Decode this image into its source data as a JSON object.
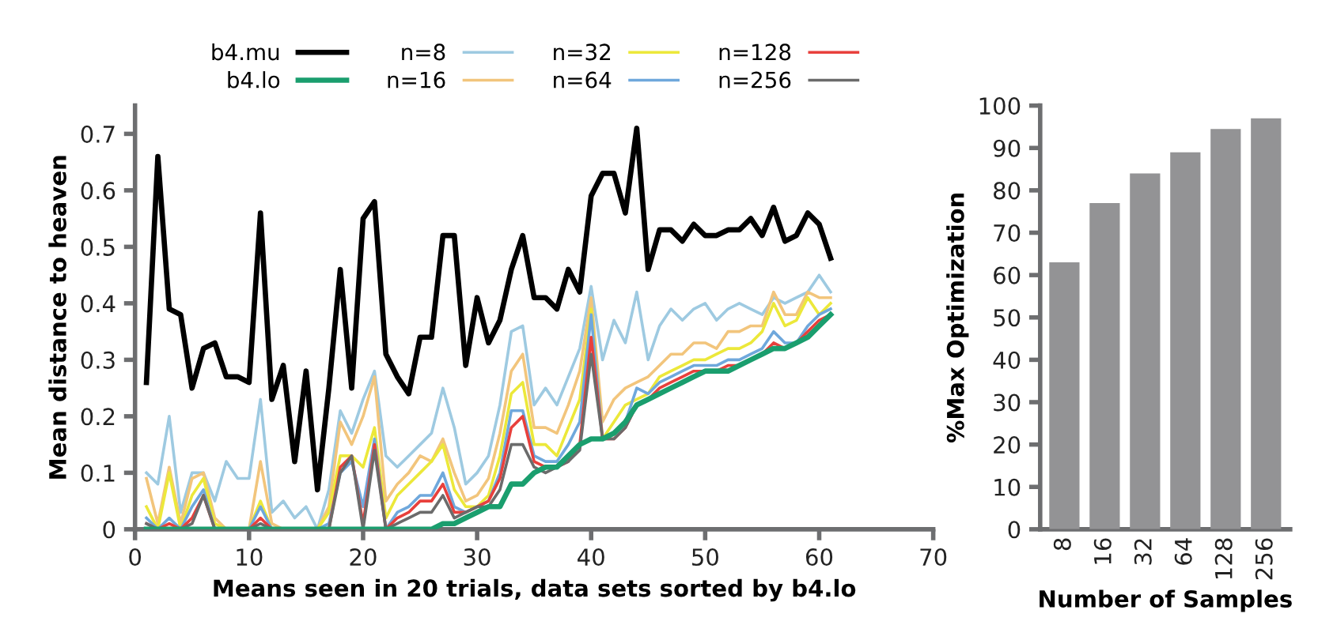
{
  "chart_data": [
    {
      "type": "line",
      "xlabel": "Means seen in 20 trials, data sets sorted by b4.lo",
      "ylabel": "Mean distance to heaven",
      "x": [
        1,
        2,
        3,
        4,
        5,
        6,
        7,
        8,
        9,
        10,
        11,
        12,
        13,
        14,
        15,
        16,
        17,
        18,
        19,
        20,
        21,
        22,
        23,
        24,
        25,
        26,
        27,
        28,
        29,
        30,
        31,
        32,
        33,
        34,
        35,
        36,
        37,
        38,
        39,
        40,
        41,
        42,
        43,
        44,
        45,
        46,
        47,
        48,
        49,
        50,
        51,
        52,
        53,
        54,
        55,
        56,
        57,
        58,
        59,
        60,
        61
      ],
      "xlim": [
        0,
        70
      ],
      "xticks": [
        0,
        10,
        20,
        30,
        40,
        50,
        60,
        70
      ],
      "ylim": [
        0,
        0.75
      ],
      "yticks": [
        0,
        0.1,
        0.2,
        0.3,
        0.4,
        0.5,
        0.6,
        0.7
      ],
      "grid": false,
      "legend": "top",
      "marker": "none",
      "line_style": "solid",
      "series": [
        {
          "name": "b4.mu",
          "color": "#000000",
          "values": [
            0.26,
            0.66,
            0.39,
            0.38,
            0.25,
            0.32,
            0.33,
            0.27,
            0.27,
            0.26,
            0.56,
            0.23,
            0.29,
            0.12,
            0.28,
            0.07,
            0.25,
            0.46,
            0.25,
            0.55,
            0.58,
            0.31,
            0.27,
            0.24,
            0.34,
            0.34,
            0.52,
            0.52,
            0.29,
            0.41,
            0.33,
            0.37,
            0.46,
            0.52,
            0.41,
            0.41,
            0.39,
            0.46,
            0.42,
            0.59,
            0.63,
            0.63,
            0.56,
            0.71,
            0.46,
            0.53,
            0.53,
            0.51,
            0.54,
            0.52,
            0.52,
            0.53,
            0.53,
            0.55,
            0.52,
            0.57,
            0.51,
            0.52,
            0.56,
            0.54,
            0.48
          ]
        },
        {
          "name": "b4.lo",
          "color": "#1a9e6e",
          "values": [
            0,
            0,
            0,
            0,
            0,
            0,
            0,
            0,
            0,
            0,
            0,
            0,
            0,
            0,
            0,
            0,
            0,
            0,
            0,
            0,
            0,
            0,
            0,
            0,
            0,
            0,
            0.01,
            0.01,
            0.02,
            0.03,
            0.04,
            0.04,
            0.08,
            0.08,
            0.1,
            0.11,
            0.11,
            0.13,
            0.15,
            0.16,
            0.16,
            0.17,
            0.19,
            0.22,
            0.23,
            0.24,
            0.25,
            0.26,
            0.27,
            0.28,
            0.28,
            0.28,
            0.29,
            0.3,
            0.31,
            0.32,
            0.32,
            0.33,
            0.34,
            0.36,
            0.38
          ]
        },
        {
          "name": "n=8",
          "color": "#9ecae1",
          "values": [
            0.1,
            0.08,
            0.2,
            0.03,
            0.1,
            0.1,
            0.05,
            0.12,
            0.09,
            0.09,
            0.23,
            0.03,
            0.05,
            0.02,
            0.04,
            0.0,
            0.07,
            0.21,
            0.17,
            0.23,
            0.28,
            0.13,
            0.11,
            0.13,
            0.15,
            0.17,
            0.25,
            0.18,
            0.08,
            0.1,
            0.13,
            0.22,
            0.35,
            0.36,
            0.22,
            0.25,
            0.22,
            0.27,
            0.32,
            0.43,
            0.3,
            0.37,
            0.33,
            0.42,
            0.3,
            0.36,
            0.39,
            0.37,
            0.39,
            0.4,
            0.37,
            0.39,
            0.4,
            0.39,
            0.38,
            0.41,
            0.4,
            0.41,
            0.42,
            0.45,
            0.42
          ]
        },
        {
          "name": "n=16",
          "color": "#f2c57c",
          "values": [
            0.09,
            0.01,
            0.11,
            0.01,
            0.09,
            0.1,
            0.02,
            0,
            0,
            0,
            0.12,
            0.01,
            0,
            0,
            0,
            0,
            0.04,
            0.19,
            0.15,
            0.2,
            0.27,
            0.05,
            0.08,
            0.1,
            0.13,
            0.12,
            0.16,
            0.1,
            0.05,
            0.06,
            0.09,
            0.17,
            0.28,
            0.31,
            0.18,
            0.18,
            0.17,
            0.22,
            0.28,
            0.41,
            0.19,
            0.23,
            0.25,
            0.26,
            0.27,
            0.29,
            0.31,
            0.31,
            0.33,
            0.33,
            0.32,
            0.35,
            0.35,
            0.36,
            0.36,
            0.42,
            0.38,
            0.38,
            0.42,
            0.41,
            0.41
          ]
        },
        {
          "name": "n=32",
          "color": "#ece83a",
          "values": [
            0.04,
            0,
            0.1,
            0,
            0.06,
            0.09,
            0.01,
            0,
            0,
            0,
            0.05,
            0,
            0,
            0,
            0,
            0,
            0.03,
            0.13,
            0.13,
            0.11,
            0.18,
            0.02,
            0.06,
            0.08,
            0.1,
            0.12,
            0.15,
            0.07,
            0.04,
            0.04,
            0.06,
            0.13,
            0.24,
            0.26,
            0.15,
            0.15,
            0.13,
            0.18,
            0.23,
            0.39,
            0.16,
            0.19,
            0.22,
            0.23,
            0.24,
            0.27,
            0.28,
            0.29,
            0.3,
            0.3,
            0.31,
            0.32,
            0.32,
            0.33,
            0.35,
            0.4,
            0.36,
            0.37,
            0.41,
            0.38,
            0.4
          ]
        },
        {
          "name": "n=64",
          "color": "#6fa8dc",
          "values": [
            0.02,
            0,
            0.02,
            0,
            0.04,
            0.07,
            0,
            0,
            0,
            0,
            0.04,
            0,
            0,
            0,
            0,
            0,
            0.01,
            0.1,
            0.12,
            0.04,
            0.16,
            0,
            0.03,
            0.04,
            0.06,
            0.06,
            0.1,
            0.04,
            0.03,
            0.04,
            0.05,
            0.1,
            0.21,
            0.21,
            0.13,
            0.12,
            0.12,
            0.15,
            0.19,
            0.38,
            0.16,
            0.17,
            0.19,
            0.25,
            0.24,
            0.26,
            0.27,
            0.28,
            0.29,
            0.29,
            0.29,
            0.3,
            0.3,
            0.31,
            0.32,
            0.35,
            0.33,
            0.33,
            0.36,
            0.38,
            0.39
          ]
        },
        {
          "name": "n=128",
          "color": "#e8403c",
          "values": [
            0.01,
            0,
            0.01,
            0,
            0.02,
            0.06,
            0,
            0,
            0,
            0,
            0.02,
            0,
            0,
            0,
            0,
            0,
            0,
            0.11,
            0.13,
            0.01,
            0.15,
            0,
            0.02,
            0.03,
            0.05,
            0.05,
            0.08,
            0.03,
            0.03,
            0.04,
            0.05,
            0.09,
            0.18,
            0.2,
            0.12,
            0.11,
            0.11,
            0.12,
            0.15,
            0.34,
            0.16,
            0.16,
            0.18,
            0.22,
            0.23,
            0.25,
            0.26,
            0.27,
            0.28,
            0.28,
            0.28,
            0.29,
            0.29,
            0.3,
            0.31,
            0.33,
            0.32,
            0.33,
            0.35,
            0.37,
            0.38
          ]
        },
        {
          "name": "n=256",
          "color": "#6b6b6b",
          "values": [
            0.01,
            0,
            0,
            0,
            0.01,
            0.06,
            0,
            0,
            0,
            0,
            0.01,
            0,
            0,
            0,
            0,
            0,
            0,
            0.1,
            0.13,
            0,
            0.14,
            0,
            0.01,
            0.02,
            0.03,
            0.03,
            0.06,
            0.02,
            0.03,
            0.04,
            0.04,
            0.07,
            0.15,
            0.15,
            0.11,
            0.1,
            0.11,
            0.12,
            0.14,
            0.31,
            0.16,
            0.16,
            0.18,
            0.22,
            0.23,
            0.24,
            0.25,
            0.26,
            0.27,
            0.28,
            0.28,
            0.28,
            0.29,
            0.3,
            0.31,
            0.32,
            0.32,
            0.33,
            0.34,
            0.36,
            0.38
          ]
        }
      ]
    },
    {
      "type": "bar",
      "xlabel": "Number of Samples",
      "ylabel": "%Max Optimization",
      "categories": [
        "8",
        "16",
        "32",
        "64",
        "128",
        "256"
      ],
      "values": [
        63,
        77,
        84,
        89,
        94.5,
        97
      ],
      "color": "#939395",
      "ylim": [
        0,
        100
      ],
      "yticks": [
        0,
        10,
        20,
        30,
        40,
        50,
        60,
        70,
        80,
        90,
        100
      ],
      "grid": false
    }
  ]
}
